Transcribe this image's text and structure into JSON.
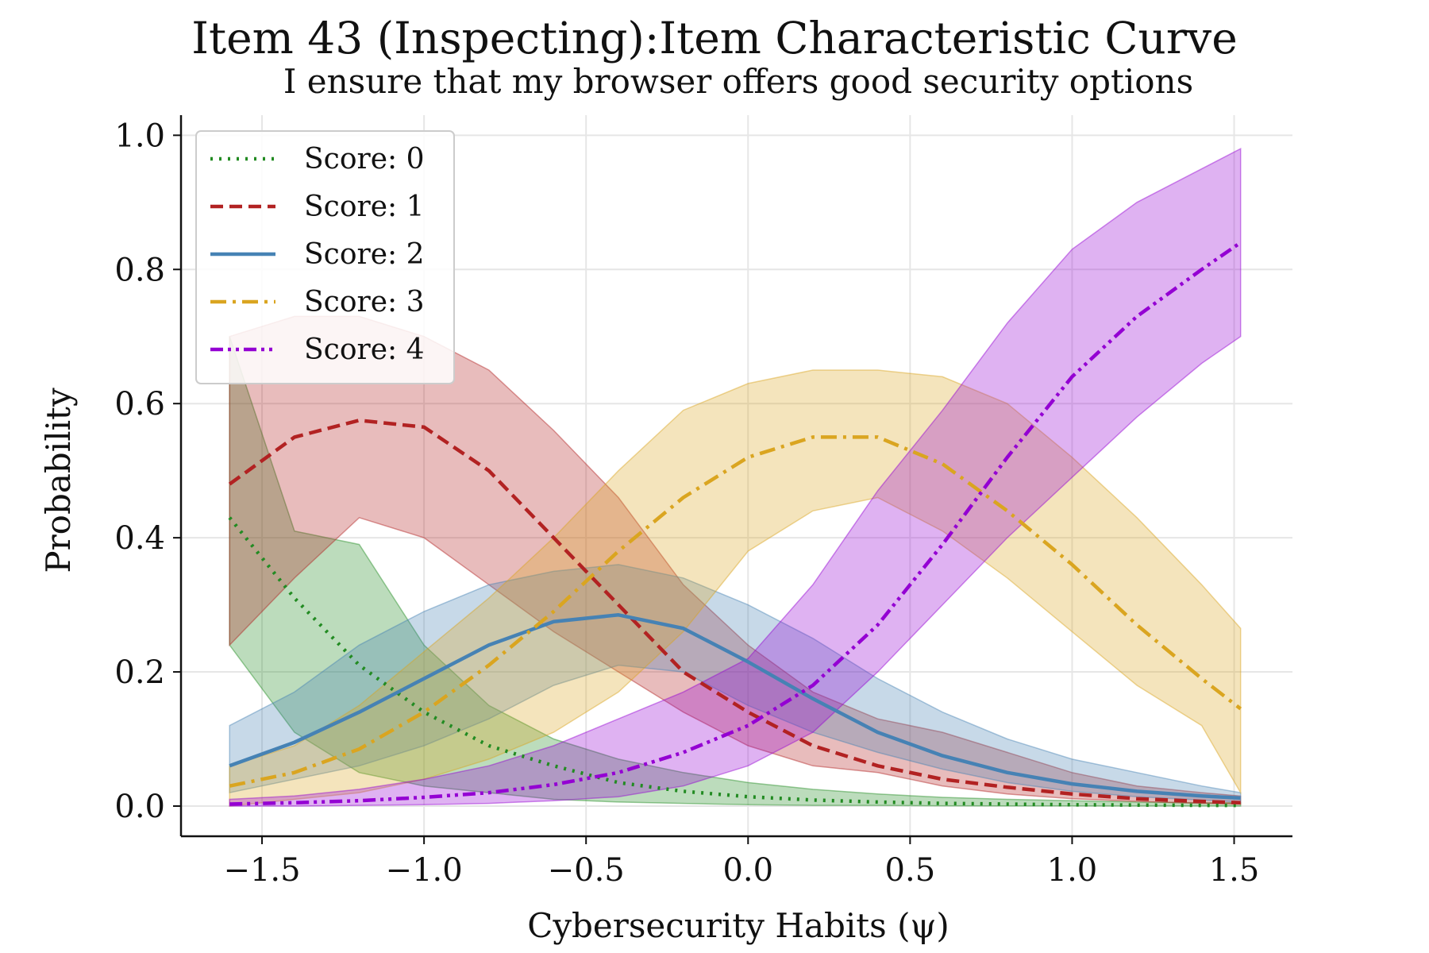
{
  "chart_data": {
    "type": "line",
    "title": "Item 43 (Inspecting):Item Characteristic Curve",
    "subtitle": "I ensure that my browser offers good security options",
    "xlabel": "Cybersecurity Habits (ψ)",
    "ylabel": "Probability",
    "xlim": [
      -1.75,
      1.68
    ],
    "ylim": [
      -0.045,
      1.03
    ],
    "xticks": [
      -1.5,
      -1.0,
      -0.5,
      0.0,
      0.5,
      1.0,
      1.5
    ],
    "xtick_labels": [
      "−1.5",
      "−1.0",
      "−0.5",
      "0.0",
      "0.5",
      "1.0",
      "1.5"
    ],
    "yticks": [
      0.0,
      0.2,
      0.4,
      0.6,
      0.8,
      1.0
    ],
    "ytick_labels": [
      "0.0",
      "0.2",
      "0.4",
      "0.6",
      "0.8",
      "1.0"
    ],
    "grid": true,
    "legend_position": "top-left",
    "x": [
      -1.6,
      -1.4,
      -1.2,
      -1.0,
      -0.8,
      -0.6,
      -0.4,
      -0.2,
      0.0,
      0.2,
      0.4,
      0.6,
      0.8,
      1.0,
      1.2,
      1.4,
      1.52
    ],
    "series": [
      {
        "name": "Score: 0",
        "color": "#228b22",
        "dash": "dotted",
        "values": [
          0.43,
          0.31,
          0.21,
          0.14,
          0.09,
          0.06,
          0.035,
          0.022,
          0.014,
          0.009,
          0.006,
          0.004,
          0.003,
          0.002,
          0.0015,
          0.001,
          0.001
        ],
        "lower": [
          0.24,
          0.11,
          0.05,
          0.03,
          0.02,
          0.01,
          0.006,
          0.004,
          0.002,
          0.001,
          0.001,
          0.0005,
          0.0003,
          0.0002,
          0.0001,
          0.0001,
          0.0
        ],
        "upper": [
          0.7,
          0.41,
          0.39,
          0.24,
          0.15,
          0.1,
          0.07,
          0.05,
          0.035,
          0.025,
          0.018,
          0.013,
          0.01,
          0.008,
          0.006,
          0.005,
          0.005
        ]
      },
      {
        "name": "Score: 1",
        "color": "#b22222",
        "dash": "dashed",
        "values": [
          0.48,
          0.55,
          0.575,
          0.565,
          0.5,
          0.4,
          0.3,
          0.2,
          0.14,
          0.09,
          0.06,
          0.04,
          0.028,
          0.018,
          0.011,
          0.007,
          0.005
        ],
        "lower": [
          0.24,
          0.34,
          0.43,
          0.4,
          0.33,
          0.26,
          0.2,
          0.14,
          0.09,
          0.06,
          0.05,
          0.03,
          0.018,
          0.011,
          0.007,
          0.004,
          0.003
        ],
        "upper": [
          0.7,
          0.73,
          0.73,
          0.7,
          0.65,
          0.56,
          0.46,
          0.33,
          0.24,
          0.17,
          0.13,
          0.11,
          0.08,
          0.05,
          0.03,
          0.02,
          0.015
        ]
      },
      {
        "name": "Score: 2",
        "color": "#4682b4",
        "dash": "solid",
        "values": [
          0.06,
          0.095,
          0.14,
          0.19,
          0.24,
          0.275,
          0.285,
          0.265,
          0.215,
          0.16,
          0.11,
          0.075,
          0.05,
          0.033,
          0.022,
          0.015,
          0.012
        ],
        "lower": [
          0.02,
          0.04,
          0.06,
          0.09,
          0.13,
          0.18,
          0.21,
          0.2,
          0.15,
          0.11,
          0.08,
          0.055,
          0.035,
          0.022,
          0.014,
          0.009,
          0.006
        ],
        "upper": [
          0.12,
          0.17,
          0.24,
          0.29,
          0.33,
          0.35,
          0.36,
          0.34,
          0.3,
          0.25,
          0.19,
          0.14,
          0.1,
          0.07,
          0.05,
          0.03,
          0.02
        ]
      },
      {
        "name": "Score: 3",
        "color": "#daa520",
        "dash": "dashdot",
        "values": [
          0.03,
          0.05,
          0.085,
          0.14,
          0.21,
          0.29,
          0.38,
          0.46,
          0.52,
          0.55,
          0.55,
          0.51,
          0.44,
          0.36,
          0.27,
          0.19,
          0.145
        ],
        "lower": [
          0.0,
          0.01,
          0.02,
          0.04,
          0.07,
          0.11,
          0.17,
          0.26,
          0.38,
          0.44,
          0.46,
          0.41,
          0.34,
          0.26,
          0.18,
          0.12,
          0.02
        ],
        "upper": [
          0.06,
          0.09,
          0.15,
          0.23,
          0.31,
          0.4,
          0.5,
          0.59,
          0.63,
          0.65,
          0.65,
          0.64,
          0.6,
          0.52,
          0.43,
          0.33,
          0.265
        ]
      },
      {
        "name": "Score: 4",
        "color": "#9400d3",
        "dash": "dashdotdot",
        "values": [
          0.003,
          0.005,
          0.008,
          0.013,
          0.02,
          0.032,
          0.05,
          0.08,
          0.12,
          0.18,
          0.27,
          0.39,
          0.52,
          0.64,
          0.73,
          0.8,
          0.84
        ],
        "lower": [
          0.0,
          0.0,
          0.001,
          0.002,
          0.004,
          0.008,
          0.014,
          0.03,
          0.06,
          0.11,
          0.2,
          0.3,
          0.4,
          0.49,
          0.58,
          0.66,
          0.7
        ],
        "upper": [
          0.01,
          0.015,
          0.025,
          0.04,
          0.06,
          0.09,
          0.13,
          0.17,
          0.22,
          0.33,
          0.47,
          0.59,
          0.72,
          0.83,
          0.9,
          0.95,
          0.98
        ]
      }
    ]
  }
}
